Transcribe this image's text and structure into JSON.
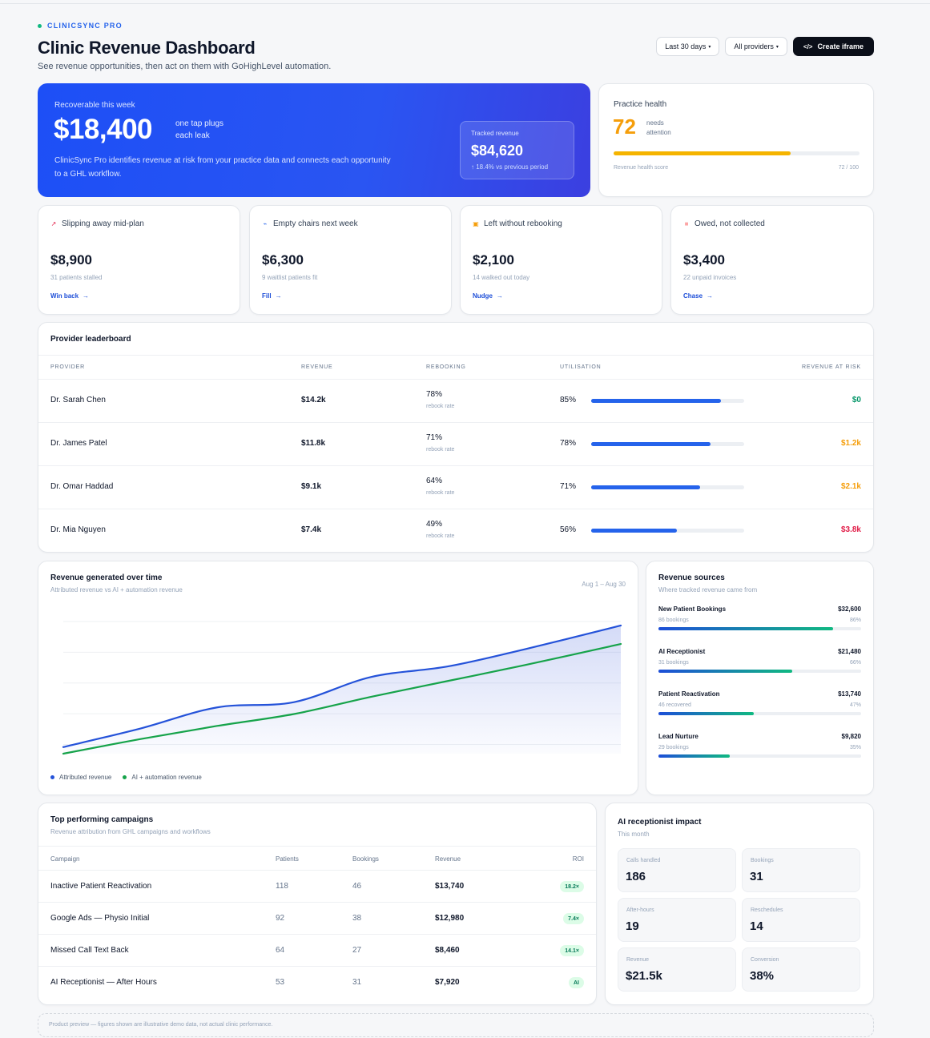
{
  "brand": {
    "name": "CLINICSYNC PRO"
  },
  "header": {
    "title": "Clinic Revenue Dashboard",
    "subtitle": "See revenue opportunities, then act on them with GoHighLevel automation.",
    "date_filter": "Last 30 days",
    "provider_filter": "All providers",
    "create_iframe": "Create iframe"
  },
  "hero": {
    "label": "Recoverable this week",
    "value": "$18,400",
    "tagline": "one tap plugs each leak",
    "description": "ClinicSync Pro identifies revenue at risk from your practice data and connects each opportunity to a GHL workflow.",
    "tracked_label": "Tracked revenue",
    "tracked_value": "$84,620",
    "tracked_change": "↑ 18.4% vs previous period"
  },
  "health": {
    "label": "Practice health",
    "score": "72",
    "note": "needs attention",
    "bar_label": "Revenue health score",
    "bar_value": "72 / 100",
    "fraction": 0.72,
    "color": "#f59e0b"
  },
  "leaks": [
    {
      "title": "Slipping away mid-plan",
      "icon": "trend-down-icon",
      "glyph": "↗",
      "glyph_color": "#e11d48",
      "value": "$8,900",
      "sub": "31 patients stalled",
      "action": "Win back"
    },
    {
      "title": "Empty chairs next week",
      "icon": "calendar-icon",
      "glyph": "⌁",
      "glyph_color": "#2563eb",
      "value": "$6,300",
      "sub": "9 waitlist patients fit",
      "action": "Fill"
    },
    {
      "title": "Left without rebooking",
      "icon": "door-icon",
      "glyph": "▣",
      "glyph_color": "#f59e0b",
      "value": "$2,100",
      "sub": "14 walked out today",
      "action": "Nudge"
    },
    {
      "title": "Owed, not collected",
      "icon": "invoice-icon",
      "glyph": "■",
      "glyph_color": "#fca5a5",
      "value": "$3,400",
      "sub": "22 unpaid invoices",
      "action": "Chase"
    }
  ],
  "leaderboard": {
    "title": "Provider leaderboard",
    "columns": {
      "provider": "PROVIDER",
      "revenue": "REVENUE",
      "rebooking": "REBOOKING",
      "utilisation": "UTILISATION",
      "risk": "REVENUE AT RISK"
    },
    "rebook_sub": "rebook rate",
    "rows": [
      {
        "name": "Dr. Sarah Chen",
        "revenue": "$14.2k",
        "rebook": "78%",
        "util": "85%",
        "util_fraction": 0.85,
        "risk": "$0",
        "risk_color": "#059669"
      },
      {
        "name": "Dr. James Patel",
        "revenue": "$11.8k",
        "rebook": "71%",
        "util": "78%",
        "util_fraction": 0.78,
        "risk": "$1.2k",
        "risk_color": "#f59e0b"
      },
      {
        "name": "Dr. Omar Haddad",
        "revenue": "$9.1k",
        "rebook": "64%",
        "util": "71%",
        "util_fraction": 0.71,
        "risk": "$2.1k",
        "risk_color": "#f59e0b"
      },
      {
        "name": "Dr. Mia Nguyen",
        "revenue": "$7.4k",
        "rebook": "49%",
        "util": "56%",
        "util_fraction": 0.56,
        "risk": "$3.8k",
        "risk_color": "#e11d48"
      }
    ]
  },
  "revenue_chart": {
    "title": "Revenue generated over time",
    "subtitle": "Attributed revenue vs AI + automation revenue",
    "date_range": "Aug 1 – Aug 30"
  },
  "chart_data": {
    "type": "area",
    "x": [
      1,
      5,
      9,
      13,
      17,
      21,
      25,
      30
    ],
    "xlabel": "",
    "ylabel": "",
    "grid": true,
    "legend": "bottom-left",
    "series": [
      {
        "name": "Attributed revenue",
        "color": "#2452d9",
        "fill": true,
        "values": [
          0.05,
          0.19,
          0.35,
          0.39,
          0.58,
          0.66,
          0.79,
          0.97
        ]
      },
      {
        "name": "AI + automation revenue",
        "color": "#16a34a",
        "fill": false,
        "values": [
          0.0,
          0.11,
          0.21,
          0.3,
          0.43,
          0.55,
          0.67,
          0.83
        ]
      }
    ]
  },
  "sources": {
    "title": "Revenue sources",
    "subtitle": "Where tracked revenue came from",
    "items": [
      {
        "name": "New Patient Bookings",
        "value": "$32,600",
        "sub": "86 bookings",
        "pct": "86%",
        "fraction": 0.86
      },
      {
        "name": "AI Receptionist",
        "value": "$21,480",
        "sub": "31 bookings",
        "pct": "66%",
        "fraction": 0.66
      },
      {
        "name": "Patient Reactivation",
        "value": "$13,740",
        "sub": "46 recovered",
        "pct": "47%",
        "fraction": 0.47
      },
      {
        "name": "Lead Nurture",
        "value": "$9,820",
        "sub": "29 bookings",
        "pct": "35%",
        "fraction": 0.35
      }
    ]
  },
  "campaigns": {
    "title": "Top performing campaigns",
    "subtitle": "Revenue attribution from GHL campaigns and workflows",
    "columns": {
      "campaign": "Campaign",
      "patients": "Patients",
      "bookings": "Bookings",
      "revenue": "Revenue",
      "roi": "ROI"
    },
    "rows": [
      {
        "name": "Inactive Patient Reactivation",
        "patients": "118",
        "bookings": "46",
        "revenue": "$13,740",
        "roi": "18.2×"
      },
      {
        "name": "Google Ads — Physio Initial",
        "patients": "92",
        "bookings": "38",
        "revenue": "$12,980",
        "roi": "7.4×"
      },
      {
        "name": "Missed Call Text Back",
        "patients": "64",
        "bookings": "27",
        "revenue": "$8,460",
        "roi": "14.1×"
      },
      {
        "name": "AI Receptionist — After Hours",
        "patients": "53",
        "bookings": "31",
        "revenue": "$7,920",
        "roi": "AI"
      }
    ]
  },
  "ai_impact": {
    "title": "AI receptionist impact",
    "subtitle": "This month",
    "tiles": [
      {
        "label": "Calls handled",
        "value": "186"
      },
      {
        "label": "Bookings",
        "value": "31"
      },
      {
        "label": "After-hours",
        "value": "19"
      },
      {
        "label": "Reschedules",
        "value": "14"
      },
      {
        "label": "Revenue",
        "value": "$21.5k"
      },
      {
        "label": "Conversion",
        "value": "38%"
      }
    ]
  },
  "footer": {
    "note": "Product preview — figures shown are illustrative demo data, not actual clinic performance."
  }
}
